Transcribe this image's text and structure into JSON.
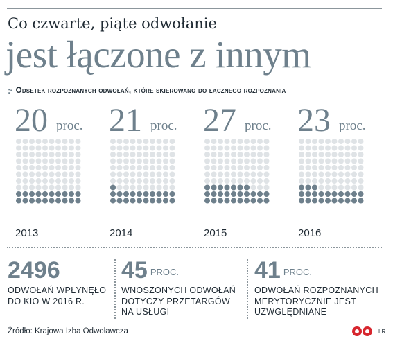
{
  "header": {
    "title_line1": "Co czwarte, piąte odwołanie",
    "title_line2": "jest łączone z innym",
    "subtitle_marker": ":·",
    "subtitle": "Odsetek rozpoznanych odwołań, które skierowano do łącznego rozpoznania"
  },
  "colors": {
    "accent": "#6e808c",
    "dot_empty": "#dfe3e6",
    "text": "#1f2a33",
    "logo_red": "#d7262e"
  },
  "chart_data": {
    "type": "waffle",
    "unit": "proc.",
    "categories": [
      "2013",
      "2014",
      "2015",
      "2016"
    ],
    "values": [
      20,
      21,
      27,
      23
    ],
    "max": 100
  },
  "stats": [
    {
      "number": "2496",
      "unit": "",
      "text_lines": [
        "ODWOŁAŃ WPŁYNĘŁO",
        "DO KIO W 2016 R."
      ]
    },
    {
      "number": "45",
      "unit": "PROC.",
      "text_lines": [
        "WNOSZONYCH ODWOŁAŃ",
        "DOTYCZY PRZETARGÓW",
        "NA USŁUGI"
      ]
    },
    {
      "number": "41",
      "unit": "PROC.",
      "text_lines": [
        "ODWOŁAŃ ROZPOZNANYCH",
        "MERYTORYCZNIE JEST",
        "UZWGLĘDNIANE"
      ]
    }
  ],
  "footer": {
    "source": "Źródło: Krajowa Izba Odwoławcza",
    "logo_text": "LR"
  }
}
